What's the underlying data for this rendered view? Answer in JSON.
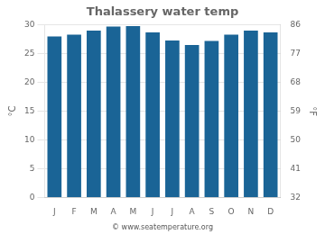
{
  "chart_data": {
    "type": "bar",
    "title": "Thalassery water temp",
    "categories": [
      "J",
      "F",
      "M",
      "A",
      "M",
      "J",
      "J",
      "A",
      "S",
      "O",
      "N",
      "D"
    ],
    "values": [
      28.0,
      28.3,
      29.0,
      29.7,
      29.8,
      28.7,
      27.3,
      26.5,
      27.2,
      28.3,
      29.0,
      28.7
    ],
    "color": "#1a6496",
    "ylabel": "°C",
    "y2label": "°F",
    "ylim": [
      0,
      30
    ],
    "yticks": [
      0,
      5,
      10,
      15,
      20,
      25,
      30
    ],
    "y2lim": [
      32,
      86
    ],
    "y2ticks": [
      32,
      41,
      50,
      59,
      68,
      77,
      86
    ],
    "grid": true,
    "annotations": [
      "© www.seatemperature.org"
    ]
  }
}
